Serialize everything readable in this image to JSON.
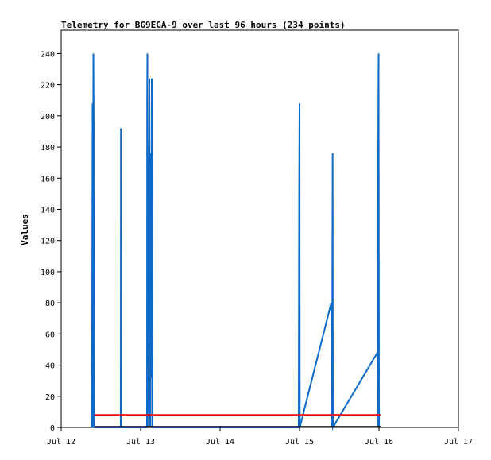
{
  "chart_data": {
    "type": "line",
    "title": "Telemetry for BG9EGA-9 over last 96 hours (234 points)",
    "xlabel": "",
    "ylabel": "Values",
    "x_ticks": [
      "Jul 12",
      "Jul 13",
      "Jul 14",
      "Jul 15",
      "Jul 16",
      "Jul 17"
    ],
    "x_tick_days": [
      12,
      13,
      14,
      15,
      16,
      17
    ],
    "xlim": [
      12,
      17
    ],
    "y_ticks": [
      "0",
      "20",
      "40",
      "60",
      "80",
      "100",
      "120",
      "140",
      "160",
      "180",
      "200",
      "220",
      "240"
    ],
    "ylim": [
      0,
      255
    ],
    "grid": false,
    "colors": {
      "blue": "#0d6ac9",
      "red": "#ee1111",
      "black": "#000000"
    },
    "series": [
      {
        "color": "blue",
        "points": [
          [
            12.385,
            0
          ],
          [
            12.39,
            64
          ],
          [
            12.395,
            208
          ],
          [
            12.4,
            0
          ],
          [
            12.405,
            240
          ],
          [
            12.41,
            192
          ],
          [
            12.415,
            0
          ],
          [
            12.75,
            0
          ],
          [
            12.752,
            192
          ],
          [
            12.754,
            0
          ],
          [
            13.08,
            0
          ],
          [
            13.082,
            208
          ],
          [
            13.085,
            240
          ],
          [
            13.088,
            0
          ],
          [
            13.1,
            84
          ],
          [
            13.11,
            224
          ],
          [
            13.12,
            0
          ],
          [
            13.125,
            176
          ],
          [
            13.13,
            160
          ],
          [
            13.135,
            32
          ],
          [
            13.14,
            224
          ],
          [
            13.145,
            0
          ],
          [
            14.99,
            0
          ],
          [
            14.993,
            80
          ],
          [
            14.996,
            160
          ],
          [
            15.0,
            208
          ],
          [
            15.003,
            0
          ],
          [
            15.4,
            80
          ],
          [
            15.41,
            0
          ],
          [
            15.413,
            96
          ],
          [
            15.417,
            176
          ],
          [
            15.42,
            0
          ],
          [
            15.98,
            48
          ],
          [
            15.985,
            0
          ],
          [
            15.99,
            176
          ],
          [
            15.995,
            240
          ],
          [
            16.0,
            0
          ]
        ]
      },
      {
        "color": "red",
        "points": [
          [
            12.42,
            8
          ],
          [
            16.02,
            8
          ]
        ]
      },
      {
        "color": "black",
        "points": [
          [
            12.42,
            0.4
          ],
          [
            16.02,
            0.4
          ]
        ]
      }
    ]
  }
}
